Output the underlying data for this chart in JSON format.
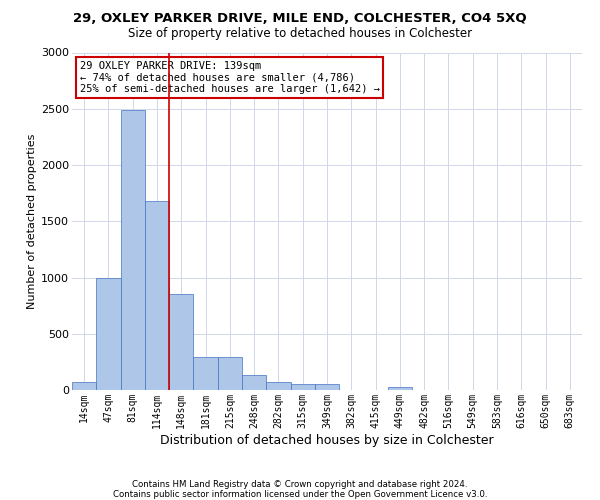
{
  "title1": "29, OXLEY PARKER DRIVE, MILE END, COLCHESTER, CO4 5XQ",
  "title2": "Size of property relative to detached houses in Colchester",
  "xlabel": "Distribution of detached houses by size in Colchester",
  "ylabel": "Number of detached properties",
  "categories": [
    "14sqm",
    "47sqm",
    "81sqm",
    "114sqm",
    "148sqm",
    "181sqm",
    "215sqm",
    "248sqm",
    "282sqm",
    "315sqm",
    "349sqm",
    "382sqm",
    "415sqm",
    "449sqm",
    "482sqm",
    "516sqm",
    "549sqm",
    "583sqm",
    "616sqm",
    "650sqm",
    "683sqm"
  ],
  "values": [
    70,
    1000,
    2490,
    1680,
    850,
    290,
    290,
    130,
    70,
    50,
    50,
    0,
    0,
    30,
    0,
    0,
    0,
    0,
    0,
    0,
    0
  ],
  "bar_color": "#aec6e8",
  "bar_edge_color": "#4472c4",
  "grid_color": "#d0d8e8",
  "background_color": "#ffffff",
  "vline_color": "#cc0000",
  "vline_x": 3.5,
  "annotation_text": "29 OXLEY PARKER DRIVE: 139sqm\n← 74% of detached houses are smaller (4,786)\n25% of semi-detached houses are larger (1,642) →",
  "annotation_box_color": "#ffffff",
  "annotation_box_edge_color": "#cc0000",
  "ylim": [
    0,
    3000
  ],
  "yticks": [
    0,
    500,
    1000,
    1500,
    2000,
    2500,
    3000
  ],
  "footer1": "Contains HM Land Registry data © Crown copyright and database right 2024.",
  "footer2": "Contains public sector information licensed under the Open Government Licence v3.0."
}
